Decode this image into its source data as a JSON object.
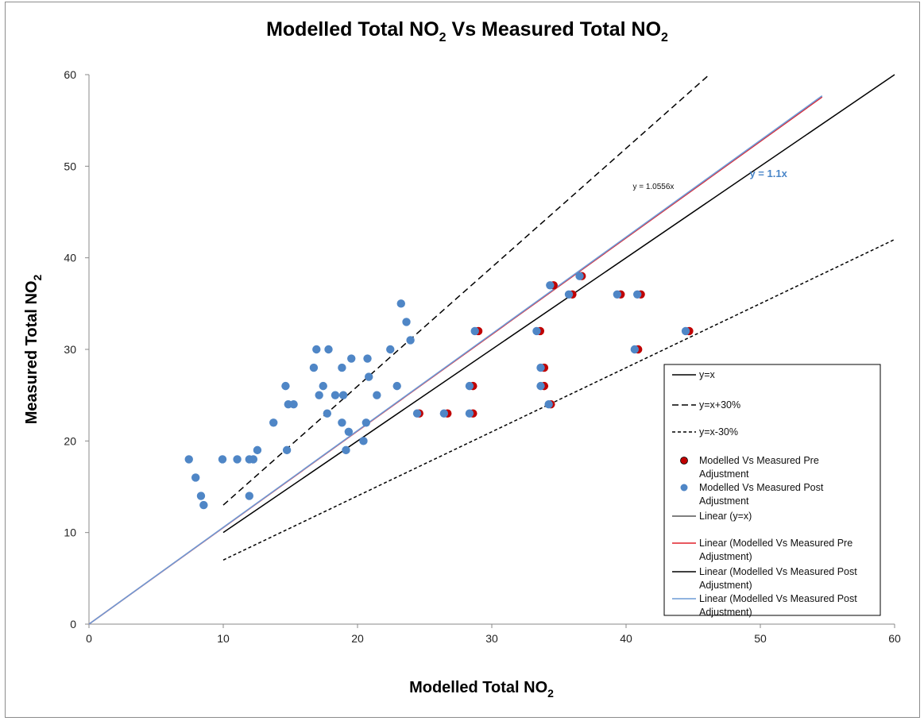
{
  "chart_data": {
    "type": "scatter",
    "title": "Modelled Total NO",
    "title_sub": "2",
    "title_mid": " Vs Measured Total NO",
    "title_end_sub": "2",
    "xlabel": "Modelled Total NO",
    "xlabel_sub": "2",
    "ylabel": "Measured Total NO",
    "ylabel_sub": "2",
    "xlim": [
      0,
      60
    ],
    "ylim": [
      0,
      60
    ],
    "xticks": [
      "0",
      "10",
      "20",
      "30",
      "40",
      "50",
      "60"
    ],
    "yticks": [
      "0",
      "10",
      "20",
      "30",
      "40",
      "50",
      "60"
    ],
    "grid": false,
    "legend_position": "bottom-right",
    "colors": {
      "pre": "#c00000",
      "post": "#4f86c6",
      "red_line": "#e0202a",
      "blue_line": "#6d9bd6",
      "black": "#000000"
    },
    "reference_lines": [
      {
        "name": "y=x",
        "style": "solid",
        "points": [
          [
            10,
            10
          ],
          [
            60,
            60
          ]
        ]
      },
      {
        "name": "y=x+30%",
        "style": "dashed-long",
        "points": [
          [
            10,
            13
          ],
          [
            46.2,
            60
          ]
        ]
      },
      {
        "name": "y=x-30%",
        "style": "dashed-short",
        "points": [
          [
            10,
            7
          ],
          [
            60,
            42
          ]
        ]
      }
    ],
    "trendlines": [
      {
        "name": "Linear (Modelled Vs Measured Pre Adjustment)",
        "color": "red_line",
        "slope": 1.0556,
        "x_range": [
          0,
          54.6
        ]
      },
      {
        "name": "Linear (Modelled Vs Measured Post Adjustment)",
        "color": "blue_line",
        "slope": 1.0556,
        "x_range": [
          0,
          54.6
        ]
      }
    ],
    "annotations": [
      {
        "text": "y = 1.0556x",
        "x": 40.5,
        "y": 47.5,
        "style": "small"
      },
      {
        "text": "y = 1.1x",
        "x": 49.2,
        "y": 48.8,
        "style": "blue"
      }
    ],
    "series": [
      {
        "name": "Modelled Vs Measured Pre Adjustment",
        "points": [
          [
            34.6,
            37
          ],
          [
            36.7,
            38
          ],
          [
            36,
            36
          ],
          [
            39.6,
            36
          ],
          [
            41.1,
            36
          ],
          [
            33.6,
            32
          ],
          [
            29,
            32
          ],
          [
            44.7,
            32
          ],
          [
            40.9,
            30
          ],
          [
            33.9,
            28
          ],
          [
            28.6,
            26
          ],
          [
            33.9,
            26
          ],
          [
            24.6,
            23
          ],
          [
            26.7,
            23
          ],
          [
            28.6,
            23
          ],
          [
            34.4,
            24
          ]
        ]
      },
      {
        "name": "Modelled Vs Measured Post Adjustment",
        "points": [
          [
            7.5,
            18
          ],
          [
            8,
            16
          ],
          [
            8.4,
            14
          ],
          [
            8.6,
            13
          ],
          [
            10,
            18
          ],
          [
            11.1,
            18
          ],
          [
            12,
            18
          ],
          [
            12.3,
            18
          ],
          [
            12.6,
            19
          ],
          [
            12,
            14
          ],
          [
            13.8,
            22
          ],
          [
            14.7,
            26
          ],
          [
            14.8,
            19
          ],
          [
            14.9,
            24
          ],
          [
            15.3,
            24
          ],
          [
            16.8,
            28
          ],
          [
            17,
            30
          ],
          [
            17.2,
            25
          ],
          [
            17.5,
            26
          ],
          [
            17.8,
            23
          ],
          [
            17.9,
            30
          ],
          [
            18.4,
            25
          ],
          [
            18.9,
            28
          ],
          [
            18.9,
            22
          ],
          [
            19,
            25
          ],
          [
            19.2,
            19
          ],
          [
            19.4,
            21
          ],
          [
            19.6,
            29
          ],
          [
            20.5,
            20
          ],
          [
            20.7,
            22
          ],
          [
            20.8,
            29
          ],
          [
            20.9,
            27
          ],
          [
            21.5,
            25
          ],
          [
            22.5,
            30
          ],
          [
            23,
            26
          ],
          [
            23.3,
            35
          ],
          [
            23.7,
            33
          ],
          [
            24,
            31
          ],
          [
            24.5,
            23
          ],
          [
            26.5,
            23
          ],
          [
            28.4,
            23
          ],
          [
            28.4,
            26
          ],
          [
            28.8,
            32
          ],
          [
            33.4,
            32
          ],
          [
            33.7,
            28
          ],
          [
            33.7,
            26
          ],
          [
            34.3,
            24
          ],
          [
            34.4,
            37
          ],
          [
            35.8,
            36
          ],
          [
            36.6,
            38
          ],
          [
            39.4,
            36
          ],
          [
            40.7,
            30
          ],
          [
            40.9,
            36
          ],
          [
            44.5,
            32
          ]
        ]
      }
    ],
    "legend": [
      {
        "label": "y=x",
        "marker": "line-solid"
      },
      {
        "label": "y=x+30%",
        "marker": "line-dashed-long"
      },
      {
        "label": "y=x-30%",
        "marker": "line-dashed-short"
      },
      {
        "label": "Modelled Vs Measured Pre",
        "label2": "Adjustment",
        "marker": "dot-pre"
      },
      {
        "label": "Modelled Vs Measured Post",
        "label2": "Adjustment",
        "marker": "dot-post"
      },
      {
        "label": "Linear (y=x)",
        "marker": "line-black-thin"
      },
      {
        "label": "Linear (Modelled Vs Measured Pre",
        "label2": "Adjustment)",
        "marker": "line-red"
      },
      {
        "label": "Linear (Modelled Vs Measured Post",
        "label2": "Adjustment)",
        "marker": "line-black"
      },
      {
        "label": "Linear (Modelled Vs Measured Post",
        "label2": "Adjustment)",
        "marker": "line-blue"
      }
    ]
  }
}
